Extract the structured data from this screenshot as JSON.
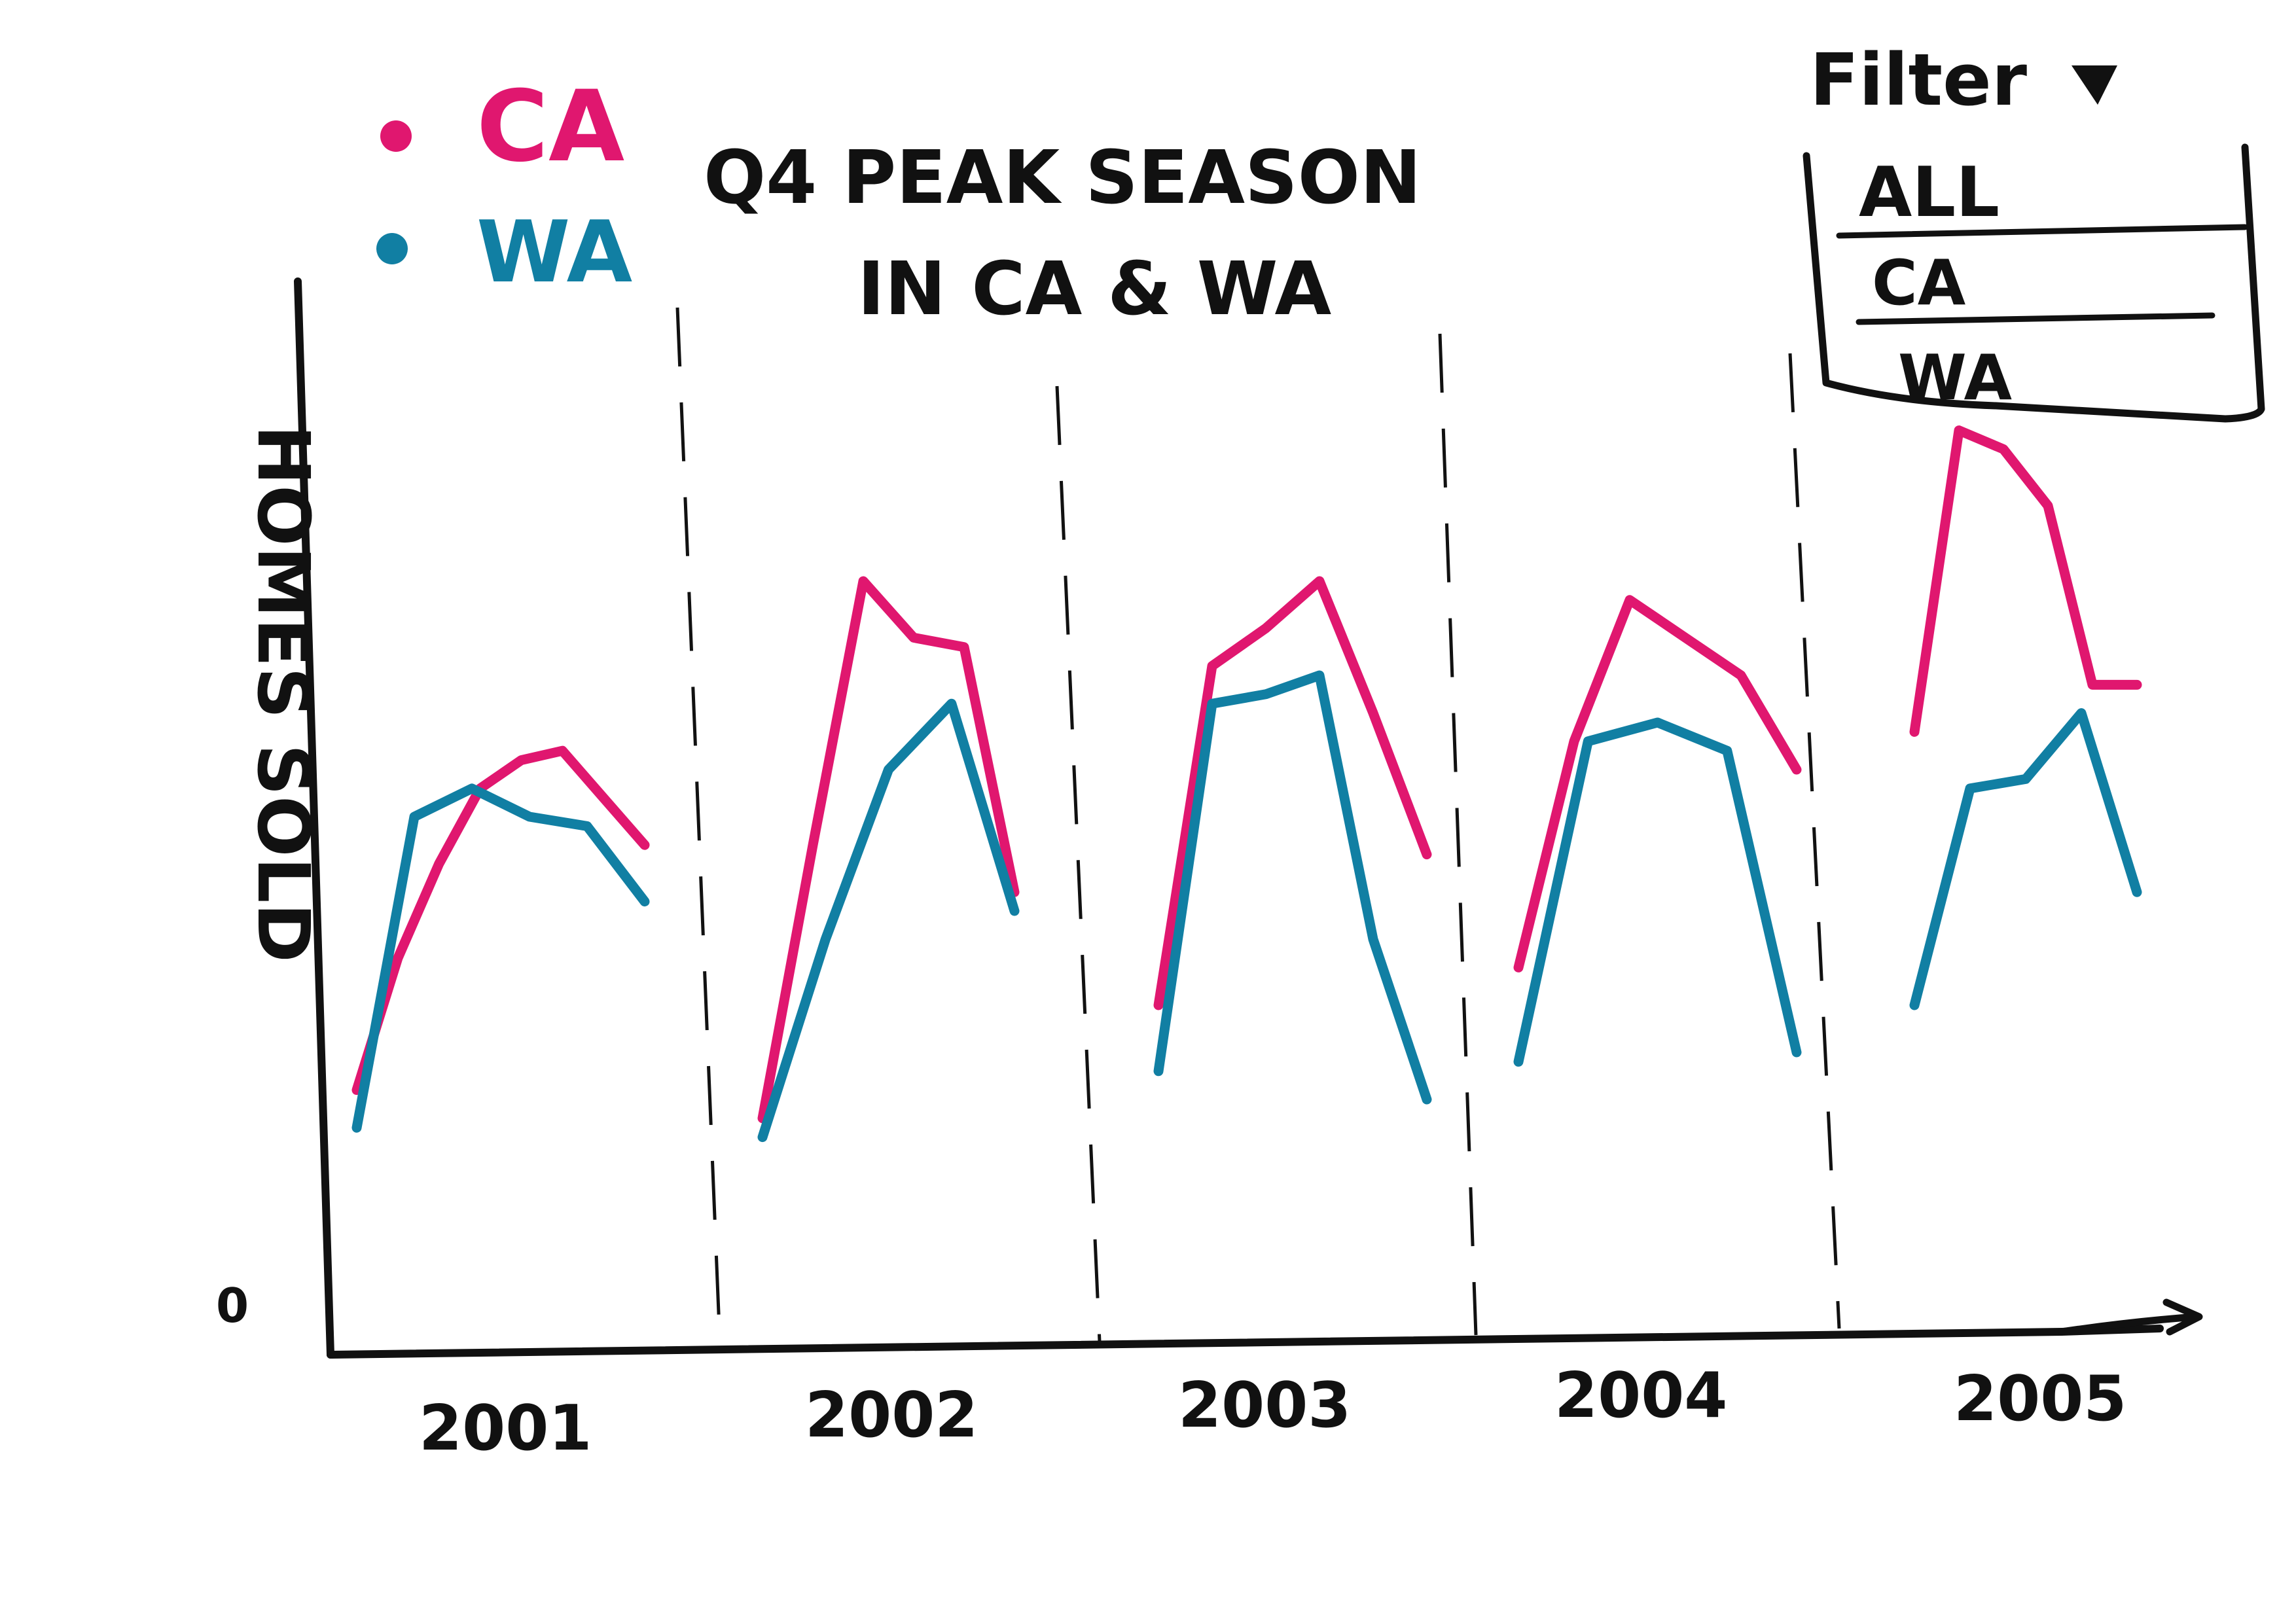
{
  "colors": {
    "CA": "#e0176f",
    "WA": "#117fa3",
    "ink": "#111111"
  },
  "filter": {
    "label": "Filter",
    "icon": "triangle-down-icon",
    "options": [
      "ALL",
      "CA",
      "WA"
    ]
  },
  "chart_data": {
    "type": "line",
    "title": [
      "Q4 PEAK SEASON",
      "IN CA & WA"
    ],
    "ylabel": "HOMES SOLD",
    "ytick": "0",
    "ylim": [
      0,
      100
    ],
    "legend": {
      "placement": "top-left",
      "entries": [
        "CA",
        "WA"
      ]
    },
    "grid": false,
    "categories": [
      "2001",
      "2002",
      "2003",
      "2004",
      "2005"
    ],
    "series": [
      {
        "name": "CA",
        "segments": [
          [
            26,
            40,
            50,
            58,
            61,
            62,
            57,
            52
          ],
          [
            23,
            52,
            80,
            74,
            73,
            47
          ],
          [
            35,
            71,
            75,
            80,
            66,
            51
          ],
          [
            39,
            63,
            78,
            74,
            70,
            60
          ],
          [
            64,
            96,
            94,
            88,
            69,
            69
          ]
        ]
      },
      {
        "name": "WA",
        "segments": [
          [
            22,
            55,
            58,
            55,
            54,
            46
          ],
          [
            21,
            42,
            60,
            67,
            45
          ],
          [
            28,
            67,
            68,
            70,
            42,
            25
          ],
          [
            29,
            63,
            65,
            62,
            30
          ],
          [
            35,
            58,
            59,
            66,
            47
          ]
        ]
      }
    ]
  }
}
